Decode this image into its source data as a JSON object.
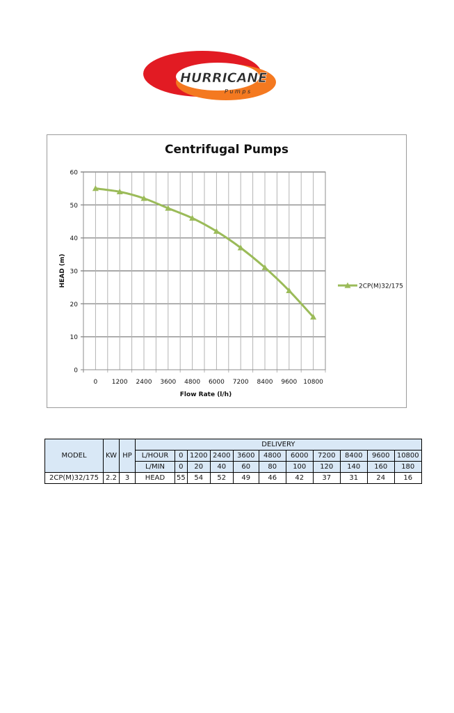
{
  "logo": {
    "text": "HURRICANE",
    "subtext": "P u m p s",
    "colors": {
      "red": "#e21b23",
      "orange": "#f47920",
      "dark": "#2a2a2a"
    }
  },
  "chart_data": {
    "type": "line",
    "title": "Centrifugal Pumps",
    "xlabel": "Flow Rate (l/h)",
    "ylabel": "HEAD (m)",
    "x": [
      0,
      1200,
      2400,
      3600,
      4800,
      6000,
      7200,
      8400,
      9600,
      10800
    ],
    "x_ticks": [
      "0",
      "1200",
      "2400",
      "3600",
      "4800",
      "6000",
      "7200",
      "8400",
      "9600",
      "10800"
    ],
    "y_ticks": [
      "0",
      "10",
      "20",
      "30",
      "40",
      "50",
      "60"
    ],
    "ylim": [
      0,
      60
    ],
    "grid": true,
    "legend_position": "right",
    "series": [
      {
        "name": "2CP(M)32/175",
        "values": [
          55,
          54,
          52,
          49,
          46,
          42,
          37,
          31,
          24,
          16
        ],
        "color": "#9bbb59",
        "marker": "triangle"
      }
    ]
  },
  "table": {
    "header": {
      "model": "MODEL",
      "kw": "KW",
      "hp": "HP",
      "delivery": "DELIVERY",
      "lhour_label": "L/HOUR",
      "lmin_label": "L/MIN"
    },
    "lhour": [
      "0",
      "1200",
      "2400",
      "3600",
      "4800",
      "6000",
      "7200",
      "8400",
      "9600",
      "10800"
    ],
    "lmin": [
      "0",
      "20",
      "40",
      "60",
      "80",
      "100",
      "120",
      "140",
      "160",
      "180"
    ],
    "row": {
      "model": "2CP(M)32/175",
      "kw": "2.2",
      "hp": "3",
      "head_label": "HEAD",
      "head": [
        "55",
        "54",
        "52",
        "49",
        "46",
        "42",
        "37",
        "31",
        "24",
        "16"
      ]
    },
    "header_bg": "#d9e8f6"
  }
}
